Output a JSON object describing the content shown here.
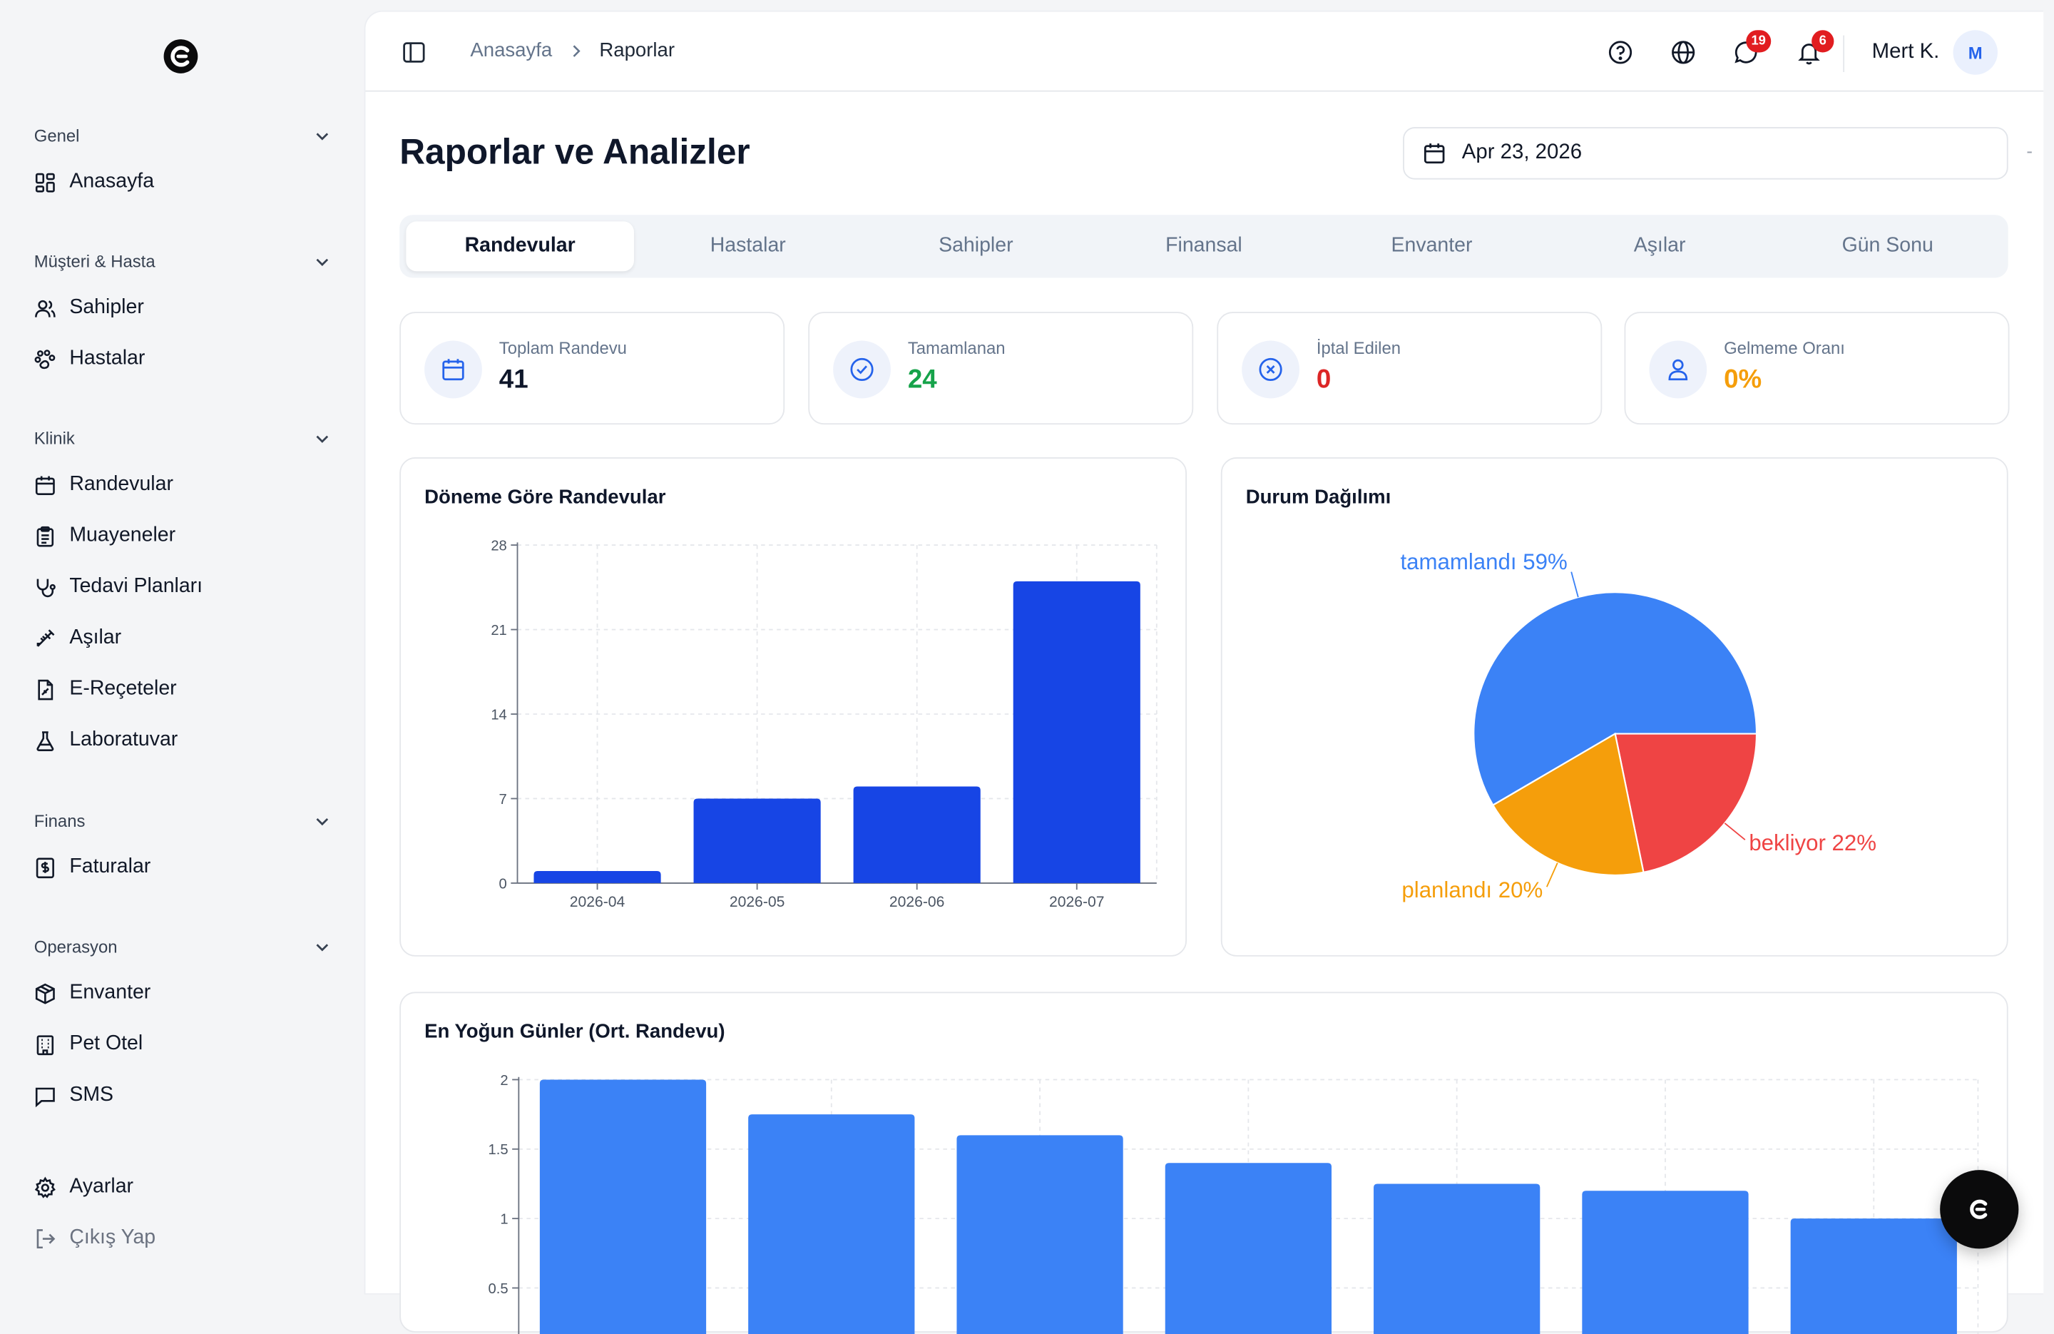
{
  "sidebar": {
    "groups": [
      {
        "title": "Genel",
        "items": [
          {
            "label": "Anasayfa",
            "icon": "dashboard-icon"
          }
        ]
      },
      {
        "title": "Müşteri & Hasta",
        "items": [
          {
            "label": "Sahipler",
            "icon": "users-icon"
          },
          {
            "label": "Hastalar",
            "icon": "paw-icon"
          }
        ]
      },
      {
        "title": "Klinik",
        "items": [
          {
            "label": "Randevular",
            "icon": "calendar-icon"
          },
          {
            "label": "Muayeneler",
            "icon": "clipboard-icon"
          },
          {
            "label": "Tedavi Planları",
            "icon": "stethoscope-icon"
          },
          {
            "label": "Aşılar",
            "icon": "syringe-icon"
          },
          {
            "label": "E-Reçeteler",
            "icon": "prescription-icon"
          },
          {
            "label": "Laboratuvar",
            "icon": "flask-icon"
          }
        ]
      },
      {
        "title": "Finans",
        "items": [
          {
            "label": "Faturalar",
            "icon": "invoice-icon"
          }
        ]
      },
      {
        "title": "Operasyon",
        "items": [
          {
            "label": "Envanter",
            "icon": "package-icon"
          },
          {
            "label": "Pet Otel",
            "icon": "hotel-icon"
          },
          {
            "label": "SMS",
            "icon": "message-icon"
          }
        ]
      }
    ],
    "settings_label": "Ayarlar",
    "logout_label": "Çıkış Yap"
  },
  "topbar": {
    "breadcrumb": [
      "Anasayfa",
      "Raporlar"
    ],
    "messages_badge": "19",
    "notifications_badge": "6",
    "user_name": "Mert K.",
    "avatar_initial": "M"
  },
  "page": {
    "title": "Raporlar ve Analizler",
    "date": "Apr 23, 2026",
    "date_trailing": "-"
  },
  "tabs": [
    {
      "label": "Randevular",
      "active": true
    },
    {
      "label": "Hastalar",
      "active": false
    },
    {
      "label": "Sahipler",
      "active": false
    },
    {
      "label": "Finansal",
      "active": false
    },
    {
      "label": "Envanter",
      "active": false
    },
    {
      "label": "Aşılar",
      "active": false
    },
    {
      "label": "Gün Sonu",
      "active": false
    }
  ],
  "stats": [
    {
      "label": "Toplam Randevu",
      "value": "41",
      "color": "#0f172a",
      "icon": "calendar-icon"
    },
    {
      "label": "Tamamlanan",
      "value": "24",
      "color": "#16a34a",
      "icon": "check-circle-icon"
    },
    {
      "label": "İptal Edilen",
      "value": "0",
      "color": "#dc2626",
      "icon": "x-circle-icon"
    },
    {
      "label": "Gelmeme Oranı",
      "value": "0%",
      "color": "#f59e0b",
      "icon": "user-icon"
    }
  ],
  "colors": {
    "accent": "#2563eb",
    "bar_dark": "#1745e5",
    "bar_light": "#3b82f6",
    "pie_blue": "#3b82f6",
    "pie_red": "#ef4444",
    "pie_orange": "#f59e0b"
  },
  "charts": {
    "period_title": "Döneme Göre Randevular",
    "status_title": "Durum Dağılımı",
    "busy_title": "En Yoğun Günler (Ort. Randevu)"
  },
  "chart_data": [
    {
      "type": "bar",
      "title": "Döneme Göre Randevular",
      "categories": [
        "2026-04",
        "2026-05",
        "2026-06",
        "2026-07"
      ],
      "values": [
        1,
        7,
        8,
        25
      ],
      "ylim": [
        0,
        28
      ],
      "yticks": [
        0,
        7,
        14,
        21,
        28
      ],
      "grid": true
    },
    {
      "type": "pie",
      "title": "Durum Dağılımı",
      "slices": [
        {
          "label": "tamamlandı 59%",
          "value": 59,
          "color": "#3b82f6"
        },
        {
          "label": "bekliyor 22%",
          "value": 22,
          "color": "#ef4444"
        },
        {
          "label": "planlandı 20%",
          "value": 20,
          "color": "#f59e0b"
        }
      ]
    },
    {
      "type": "bar",
      "title": "En Yoğun Günler (Ort. Randevu)",
      "values": [
        2,
        1.75,
        1.6,
        1.4,
        1.25,
        1.2,
        1
      ],
      "ylim": [
        0,
        2
      ],
      "yticks": [
        0.5,
        1,
        1.5,
        2
      ],
      "grid": true
    }
  ]
}
